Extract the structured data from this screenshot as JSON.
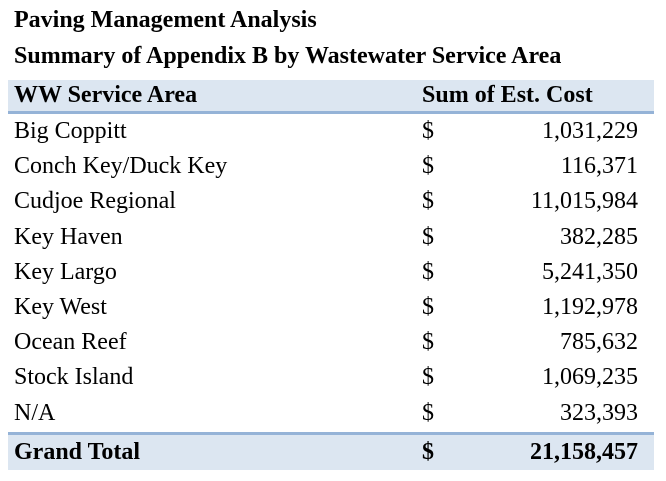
{
  "title": "Paving Management Analysis",
  "subtitle": "Summary of Appendix B by Wastewater Service Area",
  "table": {
    "headers": [
      "WW Service Area",
      "Sum of Est. Cost"
    ],
    "rows": [
      {
        "area": "Big Coppitt",
        "currency": "$",
        "cost": "1,031,229"
      },
      {
        "area": "Conch Key/Duck Key",
        "currency": "$",
        "cost": "116,371"
      },
      {
        "area": "Cudjoe Regional",
        "currency": "$",
        "cost": "11,015,984"
      },
      {
        "area": "Key Haven",
        "currency": "$",
        "cost": "382,285"
      },
      {
        "area": "Key Largo",
        "currency": "$",
        "cost": "5,241,350"
      },
      {
        "area": "Key West",
        "currency": "$",
        "cost": "1,192,978"
      },
      {
        "area": "Ocean Reef",
        "currency": "$",
        "cost": "785,632"
      },
      {
        "area": "Stock Island",
        "currency": "$",
        "cost": "1,069,235"
      },
      {
        "area": "N/A",
        "currency": "$",
        "cost": "323,393"
      }
    ],
    "total": {
      "label": "Grand Total",
      "currency": "$",
      "cost": "21,158,457"
    }
  }
}
